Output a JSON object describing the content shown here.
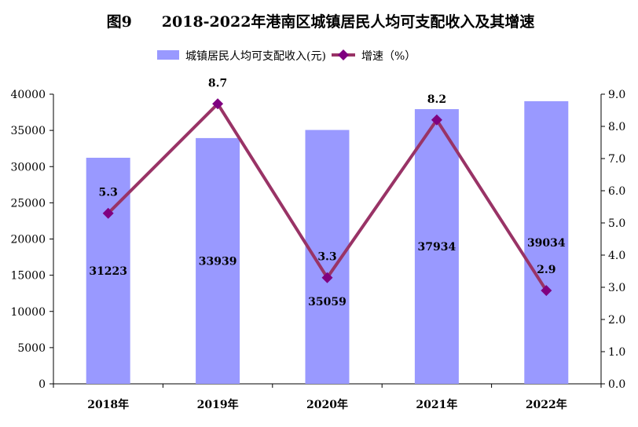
{
  "chart_data": {
    "type": "bar+line",
    "title": "图9　　2018-2022年港南区城镇居民人均可支配收入及其增速",
    "categories": [
      "2018年",
      "2019年",
      "2020年",
      "2021年",
      "2022年"
    ],
    "series": [
      {
        "name": "城镇居民人均可支配收入(元)",
        "type": "bar",
        "axis": "left",
        "values": [
          31223,
          33939,
          35059,
          37934,
          39034
        ],
        "color": "#9999FF"
      },
      {
        "name": "增速（%）",
        "type": "line",
        "axis": "right",
        "values": [
          5.3,
          8.7,
          3.3,
          8.2,
          2.9
        ],
        "color": "#993366",
        "marker_color": "#800080"
      }
    ],
    "left_axis": {
      "min": 0,
      "max": 40000,
      "step": 5000,
      "ticks": [
        "0",
        "5000",
        "10000",
        "15000",
        "20000",
        "25000",
        "30000",
        "35000",
        "40000"
      ]
    },
    "right_axis": {
      "min": 0,
      "max": 9,
      "step": 1,
      "ticks": [
        "0.0",
        "1.0",
        "2.0",
        "3.0",
        "4.0",
        "5.0",
        "6.0",
        "7.0",
        "8.0",
        "9.0"
      ]
    },
    "bar_labels": [
      "31223",
      "33939",
      "35059",
      "37934",
      "39034"
    ],
    "line_labels": [
      "5.3",
      "8.7",
      "3.3",
      "8.2",
      "2.9"
    ],
    "legend_position": "top",
    "grid": false
  }
}
